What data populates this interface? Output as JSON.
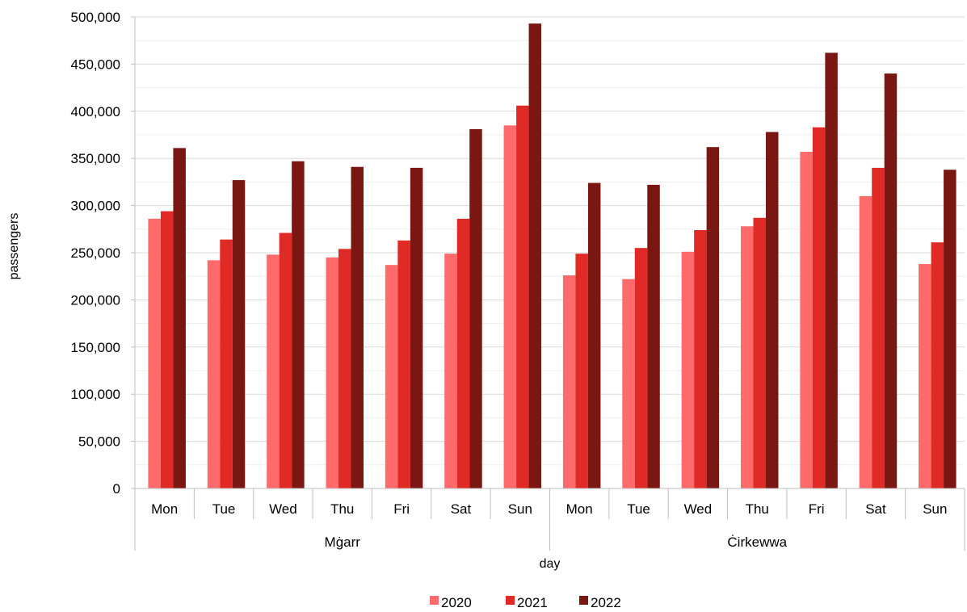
{
  "chart_data": {
    "type": "bar",
    "title": "",
    "xlabel": "day",
    "ylabel": "passengers",
    "ylim": [
      0,
      500000
    ],
    "y_ticks": [
      0,
      50000,
      100000,
      150000,
      200000,
      250000,
      300000,
      350000,
      400000,
      450000,
      500000
    ],
    "y_tick_labels": [
      "0",
      "50,000",
      "100,000",
      "150,000",
      "200,000",
      "250,000",
      "300,000",
      "350,000",
      "400,000",
      "450,000",
      "500,000"
    ],
    "minor_gridlines": true,
    "legend_position": "bottom",
    "groups": [
      {
        "name": "Mġarr",
        "categories": [
          "Mon",
          "Tue",
          "Wed",
          "Thu",
          "Fri",
          "Sat",
          "Sun"
        ]
      },
      {
        "name": "Ċirkewwa",
        "categories": [
          "Mon",
          "Tue",
          "Wed",
          "Thu",
          "Fri",
          "Sat",
          "Sun"
        ]
      }
    ],
    "series": [
      {
        "name": "2020",
        "color": "#ff6b6b",
        "values": [
          286000,
          242000,
          248000,
          245000,
          237000,
          249000,
          385000,
          226000,
          222000,
          251000,
          278000,
          357000,
          310000,
          238000
        ]
      },
      {
        "name": "2021",
        "color": "#e02a25",
        "values": [
          294000,
          264000,
          271000,
          254000,
          263000,
          286000,
          406000,
          249000,
          255000,
          274000,
          287000,
          383000,
          340000,
          261000
        ]
      },
      {
        "name": "2022",
        "color": "#7b1712",
        "values": [
          361000,
          327000,
          347000,
          341000,
          340000,
          381000,
          493000,
          324000,
          322000,
          362000,
          378000,
          462000,
          440000,
          338000
        ]
      }
    ]
  }
}
